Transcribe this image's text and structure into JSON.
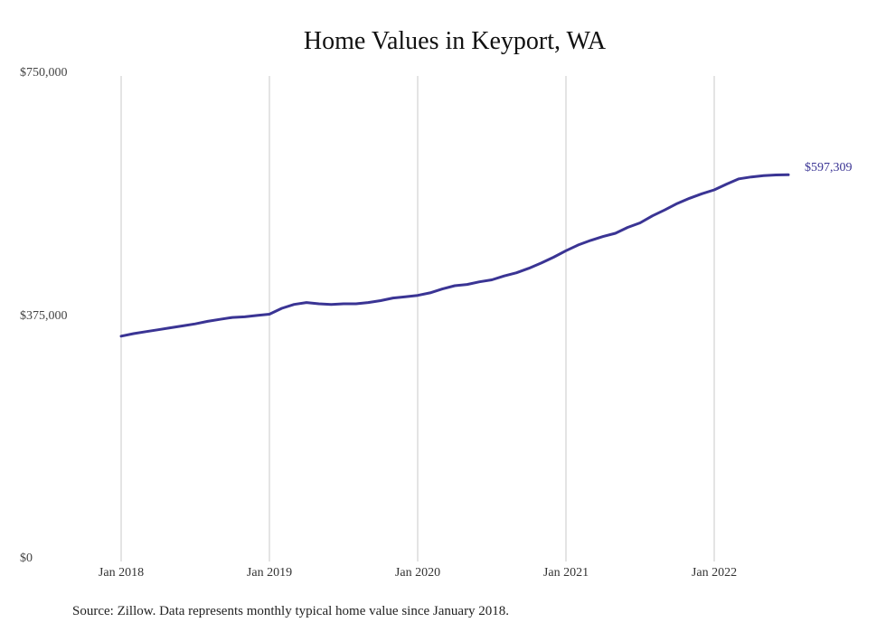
{
  "title": "Home Values in Keyport, WA",
  "source": "Source: Zillow. Data represents monthly typical home value since January 2018.",
  "end_label": "$597,309",
  "colors": {
    "line": "#3a3494",
    "grid": "#c8c8c8"
  },
  "y_ticks": [
    {
      "label": "$750,000",
      "value": 750000
    },
    {
      "label": "$375,000",
      "value": 375000
    },
    {
      "label": "$0",
      "value": 0
    }
  ],
  "x_ticks": [
    {
      "label": "Jan 2018",
      "index": 0
    },
    {
      "label": "Jan 2019",
      "index": 12
    },
    {
      "label": "Jan 2020",
      "index": 24
    },
    {
      "label": "Jan 2021",
      "index": 36
    },
    {
      "label": "Jan 2022",
      "index": 48
    }
  ],
  "chart_data": {
    "type": "line",
    "title": "Home Values in Keyport, WA",
    "xlabel": "",
    "ylabel": "",
    "ylim": [
      0,
      750000
    ],
    "grid": "vertical lines at January of each year",
    "x_start": "Jan 2018",
    "x_end": "Jul 2022",
    "series": [
      {
        "name": "Typical home value",
        "values": [
          348000,
          352000,
          355000,
          358000,
          361000,
          364000,
          367000,
          371000,
          374000,
          377000,
          378000,
          380000,
          382000,
          391000,
          397000,
          400000,
          398000,
          397000,
          398000,
          398000,
          400000,
          403000,
          407000,
          409000,
          411000,
          415000,
          421000,
          426000,
          428000,
          432000,
          435000,
          441000,
          446000,
          453000,
          461000,
          470000,
          480000,
          489000,
          496000,
          502000,
          507000,
          516000,
          523000,
          534000,
          543000,
          553000,
          561000,
          568000,
          574000,
          583000,
          591000,
          594000,
          596000,
          597000,
          597309
        ]
      }
    ],
    "annotations": [
      {
        "text": "$597,309",
        "at": "Jul 2022"
      }
    ],
    "source": "Source: Zillow. Data represents monthly typical home value since January 2018."
  }
}
